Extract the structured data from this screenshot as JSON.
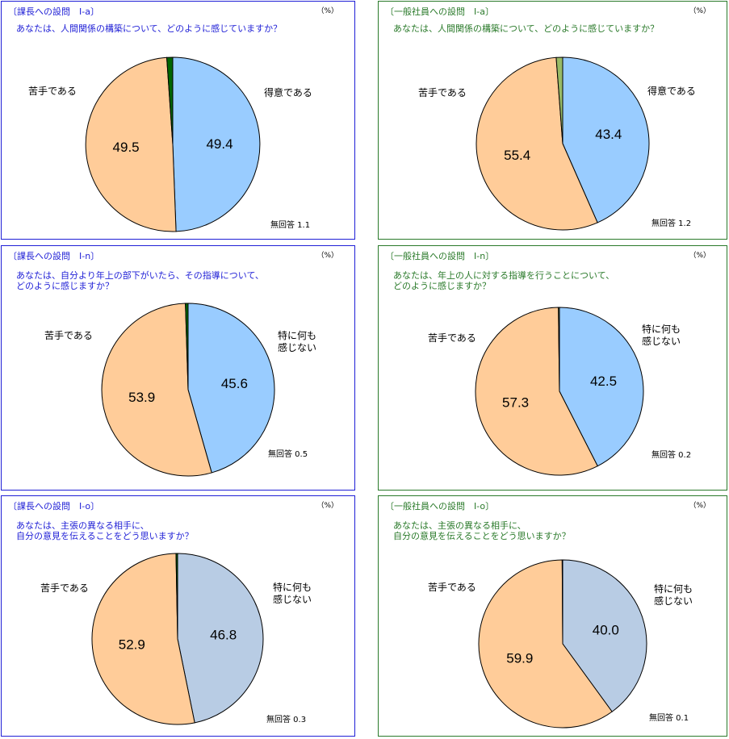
{
  "chart_data": [
    {
      "type": "pie",
      "header": "〔課長への設問　Ⅰ-a〕",
      "unit": "（%）",
      "title": "あなたは、人間関係の構築について、どのように感じていますか？",
      "slices": [
        {
          "label": "得意である",
          "value": 49.4,
          "color": "#99ccff"
        },
        {
          "label": "苦手である",
          "value": 49.5,
          "color": "#ffcc99"
        },
        {
          "label": "無回答",
          "value": 1.1,
          "color": "#006600"
        }
      ],
      "answer_labels": [
        "得意である",
        "苦手である"
      ],
      "no_answer_text": "無回答 1.1"
    },
    {
      "type": "pie",
      "header": "〔一般社員への設問　Ⅰ-a〕",
      "unit": "（%）",
      "title": "あなたは、人間関係の構築について、どのように感じていますか？",
      "slices": [
        {
          "label": "得意である",
          "value": 43.4,
          "color": "#99ccff"
        },
        {
          "label": "苦手である",
          "value": 55.4,
          "color": "#ffcc99"
        },
        {
          "label": "無回答",
          "value": 1.2,
          "color": "#99bb66"
        }
      ],
      "answer_labels": [
        "得意である",
        "苦手である"
      ],
      "no_answer_text": "無回答 1.2"
    },
    {
      "type": "pie",
      "header": "〔課長への設問　Ⅰ-n〕",
      "unit": "（%）",
      "title": "あなたは、自分より年上の部下がいたら、その指導について、\nどのように感じますか？",
      "slices": [
        {
          "label": "特に何も\n感じない",
          "value": 45.6,
          "color": "#99ccff"
        },
        {
          "label": "苦手である",
          "value": 53.9,
          "color": "#ffcc99"
        },
        {
          "label": "無回答",
          "value": 0.5,
          "color": "#006600"
        }
      ],
      "answer_labels": [
        "特に何も\n感じない",
        "苦手である"
      ],
      "no_answer_text": "無回答 0.5"
    },
    {
      "type": "pie",
      "header": "〔一般社員への設問　Ⅰ-n〕",
      "unit": "（%）",
      "title": "あなたは、年上の人に対する指導を行うことについて、\nどのように感じますか？",
      "slices": [
        {
          "label": "特に何も\n感じない",
          "value": 42.5,
          "color": "#99ccff"
        },
        {
          "label": "苦手である",
          "value": 57.3,
          "color": "#ffcc99"
        },
        {
          "label": "無回答",
          "value": 0.2,
          "color": "#99bb66"
        }
      ],
      "answer_labels": [
        "特に何も\n感じない",
        "苦手である"
      ],
      "no_answer_text": "無回答 0.2"
    },
    {
      "type": "pie",
      "header": "〔課長への設問　Ⅰ-o〕",
      "unit": "（%）",
      "title": "あなたは、主張の異なる相手に、\n自分の意見を伝えることをどう思いますか？",
      "slices": [
        {
          "label": "特に何も\n感じない",
          "value": 46.8,
          "color": "#b8cce4"
        },
        {
          "label": "苦手である",
          "value": 52.9,
          "color": "#ffcc99"
        },
        {
          "label": "無回答",
          "value": 0.3,
          "color": "#006600"
        }
      ],
      "answer_labels": [
        "特に何も\n感じない",
        "苦手である"
      ],
      "no_answer_text": "無回答 0.3"
    },
    {
      "type": "pie",
      "header": "〔一般社員への設問　Ⅰ-o〕",
      "unit": "（%）",
      "title": "あなたは、主張の異なる相手に、\n自分の意見を伝えることをどう思いますか？",
      "slices": [
        {
          "label": "特に何も\n感じない",
          "value": 40.0,
          "color": "#b8cce4"
        },
        {
          "label": "苦手である",
          "value": 59.9,
          "color": "#ffcc99"
        },
        {
          "label": "無回答",
          "value": 0.1,
          "color": "#99bb66"
        }
      ],
      "answer_labels": [
        "特に何も\n感じない",
        "苦手である"
      ],
      "no_answer_text": "無回答 0.1"
    }
  ]
}
